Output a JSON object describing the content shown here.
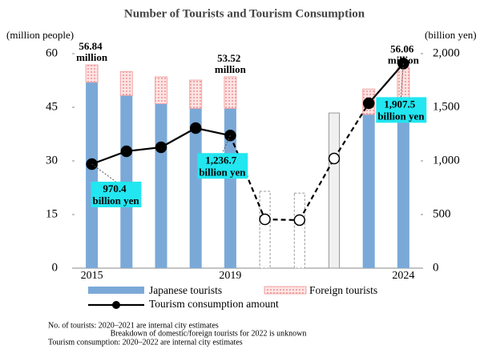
{
  "chart_data": {
    "type": "bar_line",
    "title": "Number of Tourists and Tourism Consumption",
    "y_label": "(million people)",
    "y2_label": "(billion yen)",
    "categories": [
      "2015",
      null,
      null,
      null,
      "2019",
      null,
      null,
      null,
      null,
      "2024"
    ],
    "ylim": [
      0,
      60
    ],
    "yticks": [
      0,
      15,
      30,
      45,
      60
    ],
    "y2lim": [
      0,
      2000
    ],
    "y2ticks": [
      0,
      500,
      {
        "value": 1000,
        "label": "1,000"
      },
      {
        "value": 1500,
        "label": "1,500"
      },
      {
        "value": 2000,
        "label": "2,000"
      }
    ],
    "series": [
      {
        "name": "Japanese tourists",
        "color": "#7aa9d8",
        "values": [
          52,
          48.3,
          46,
          44.7,
          44.7,
          null,
          null,
          null,
          43,
          45.2
        ]
      },
      {
        "name": "Foreign tourists",
        "color": "#f4a7a7",
        "values": [
          4.84,
          6.7,
          7.5,
          7.9,
          8.82,
          null,
          null,
          null,
          7.1,
          10.86
        ],
        "value_labels": [
          "56.84 million",
          null,
          null,
          null,
          "53.52 million",
          null,
          null,
          null,
          null,
          "56.06 million"
        ]
      },
      {
        "color": "#f0f0f0",
        "values": [
          null,
          null,
          null,
          null,
          null,
          21.5,
          21,
          43.4,
          null,
          null
        ],
        "estimated": [
          false,
          false,
          false,
          false,
          false,
          true,
          true,
          false,
          false,
          false
        ]
      },
      {
        "name": "Tourism consumption amount",
        "type": "line",
        "axis": "y2",
        "color": "#000000",
        "values": [
          970.4,
          1090,
          1127,
          1306,
          1236.7,
          455,
          448,
          1022,
          1537,
          1907.5
        ],
        "estimated": [
          false,
          false,
          false,
          false,
          false,
          true,
          true,
          true,
          false,
          false
        ],
        "value_labels": [
          "970.4 billion yen",
          null,
          null,
          null,
          "1,236.7 billion yen",
          null,
          null,
          null,
          null,
          "1,907.5 billion yen"
        ]
      }
    ],
    "notes": [
      "No. of tourists: 2020–2021 are internal city estimates",
      "Breakdown of domestic/foreign tourists for 2022 is unknown",
      "Tourism consumption: 2020–2022 are internal city estimates"
    ]
  }
}
